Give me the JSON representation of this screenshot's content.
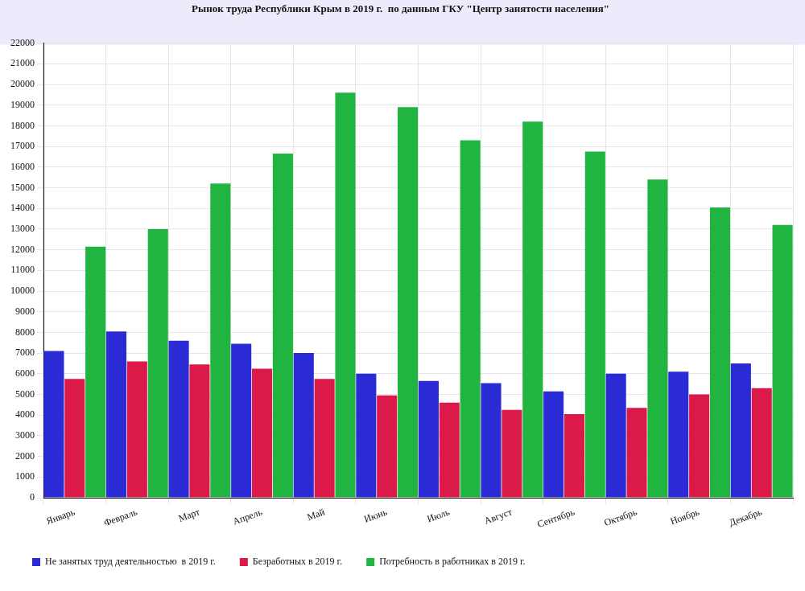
{
  "chart_data": {
    "type": "bar",
    "title": "Рынок труда Республики Крым в 2019 г.  по данным ГКУ \"Центр занятости населения\"",
    "categories": [
      "Январь",
      "Февраль",
      "Март",
      "Апрель",
      "Май",
      "Июнь",
      "Июль",
      "Август",
      "Сентябрь",
      "Октябрь",
      "Ноябрь",
      "Декабрь"
    ],
    "series": [
      {
        "name": "Не занятых труд деятельностью  в 2019 г.",
        "color": "#2b2bd6",
        "values": [
          7100,
          8050,
          7600,
          7450,
          7000,
          6000,
          5650,
          5550,
          5150,
          6000,
          6100,
          6500
        ]
      },
      {
        "name": "Безработных в 2019 г.",
        "color": "#dc1a4a",
        "values": [
          5750,
          6600,
          6450,
          6250,
          5750,
          4950,
          4600,
          4250,
          4050,
          4350,
          5000,
          5300
        ]
      },
      {
        "name": "Потребность в работниках в 2019 г.",
        "color": "#1fb540",
        "values": [
          12150,
          13000,
          15200,
          16650,
          19600,
          18900,
          17300,
          18200,
          16750,
          15400,
          14050,
          13200
        ]
      }
    ],
    "ylim": [
      0,
      22000
    ],
    "yticks": [
      0,
      1000,
      2000,
      3000,
      4000,
      5000,
      6000,
      7000,
      8000,
      9000,
      10000,
      11000,
      12000,
      13000,
      14000,
      15000,
      16000,
      17000,
      18000,
      19000,
      20000,
      21000,
      22000
    ],
    "grid": true,
    "legend": "bottom"
  }
}
